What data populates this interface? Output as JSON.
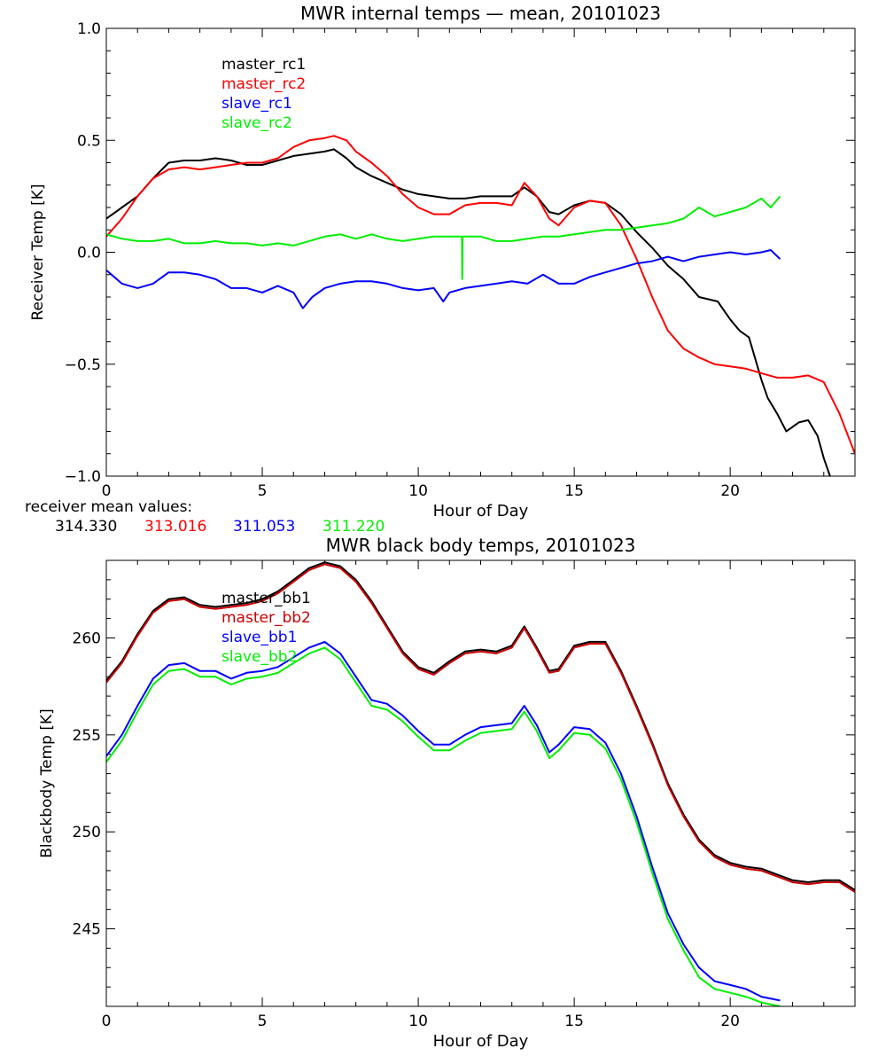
{
  "chart_data": [
    {
      "type": "line",
      "title": "MWR internal temps — mean, 20101023",
      "xlabel": "Hour of Day",
      "ylabel": "Receiver Temp [K]",
      "xlim": [
        0,
        24
      ],
      "ylim": [
        -1.0,
        1.0
      ],
      "x_ticks": [
        0,
        5,
        10,
        15,
        20
      ],
      "y_ticks": [
        -1.0,
        -0.5,
        0.0,
        0.5,
        1.0
      ],
      "y_tick_labels": [
        "−1.0",
        "−0.5",
        "0.0",
        "0.5",
        "1.0"
      ],
      "legend_position": "top-left",
      "series": [
        {
          "name": "master_rc1",
          "color": "#000000",
          "x": [
            0,
            0.5,
            1,
            1.5,
            2,
            2.5,
            3,
            3.5,
            4,
            4.5,
            5,
            5.5,
            6,
            6.5,
            7,
            7.3,
            7.7,
            8,
            8.5,
            9,
            9.5,
            10,
            10.5,
            11,
            11.5,
            12,
            12.5,
            13,
            13.4,
            13.8,
            14.2,
            14.5,
            15,
            15.5,
            16,
            16.5,
            17,
            17.5,
            18,
            18.5,
            19,
            19.3,
            19.6,
            20,
            20.3,
            20.6,
            21,
            21.2,
            21.5,
            21.8,
            22,
            22.2,
            22.5,
            22.8,
            23,
            23.2
          ],
          "y": [
            0.15,
            0.2,
            0.25,
            0.33,
            0.4,
            0.41,
            0.41,
            0.42,
            0.41,
            0.39,
            0.39,
            0.41,
            0.43,
            0.44,
            0.45,
            0.46,
            0.42,
            0.38,
            0.34,
            0.31,
            0.28,
            0.26,
            0.25,
            0.24,
            0.24,
            0.25,
            0.25,
            0.25,
            0.29,
            0.25,
            0.18,
            0.17,
            0.21,
            0.23,
            0.22,
            0.17,
            0.09,
            0.02,
            -0.06,
            -0.12,
            -0.2,
            -0.21,
            -0.22,
            -0.3,
            -0.35,
            -0.38,
            -0.57,
            -0.65,
            -0.72,
            -0.8,
            -0.78,
            -0.76,
            -0.75,
            -0.82,
            -0.92,
            -1.0
          ]
        },
        {
          "name": "master_rc2",
          "color": "#ff0000",
          "x": [
            0,
            0.5,
            1,
            1.5,
            2,
            2.5,
            3,
            3.5,
            4,
            4.5,
            5,
            5.5,
            6,
            6.5,
            7,
            7.3,
            7.7,
            8,
            8.5,
            9,
            9.5,
            10,
            10.5,
            11,
            11.5,
            12,
            12.5,
            13,
            13.4,
            13.8,
            14.2,
            14.5,
            15,
            15.5,
            16,
            16.5,
            17,
            17.5,
            18,
            18.5,
            19,
            19.5,
            20,
            20.5,
            21,
            21.5,
            22,
            22.5,
            23,
            23.5,
            24
          ],
          "y": [
            0.07,
            0.15,
            0.25,
            0.33,
            0.37,
            0.38,
            0.37,
            0.38,
            0.39,
            0.4,
            0.4,
            0.42,
            0.47,
            0.5,
            0.51,
            0.52,
            0.5,
            0.45,
            0.4,
            0.34,
            0.26,
            0.2,
            0.17,
            0.17,
            0.21,
            0.22,
            0.22,
            0.21,
            0.31,
            0.25,
            0.15,
            0.12,
            0.2,
            0.23,
            0.22,
            0.12,
            -0.03,
            -0.2,
            -0.35,
            -0.43,
            -0.47,
            -0.5,
            -0.51,
            -0.52,
            -0.54,
            -0.56,
            -0.56,
            -0.55,
            -0.58,
            -0.72,
            -0.9
          ]
        },
        {
          "name": "slave_rc1",
          "color": "#0000ff",
          "x": [
            0,
            0.5,
            1,
            1.5,
            2,
            2.5,
            3,
            3.5,
            4,
            4.5,
            5,
            5.5,
            6,
            6.3,
            6.6,
            7,
            7.5,
            8,
            8.5,
            9,
            9.5,
            10,
            10.5,
            10.8,
            11,
            11.5,
            12,
            12.5,
            13,
            13.5,
            14,
            14.5,
            15,
            15.5,
            16,
            16.5,
            17,
            17.5,
            18,
            18.5,
            19,
            19.5,
            20,
            20.5,
            21,
            21.3,
            21.6
          ],
          "y": [
            -0.08,
            -0.14,
            -0.16,
            -0.14,
            -0.09,
            -0.09,
            -0.1,
            -0.12,
            -0.16,
            -0.16,
            -0.18,
            -0.15,
            -0.18,
            -0.25,
            -0.2,
            -0.16,
            -0.14,
            -0.13,
            -0.13,
            -0.14,
            -0.16,
            -0.17,
            -0.16,
            -0.22,
            -0.18,
            -0.16,
            -0.15,
            -0.14,
            -0.13,
            -0.14,
            -0.1,
            -0.14,
            -0.14,
            -0.11,
            -0.09,
            -0.07,
            -0.05,
            -0.04,
            -0.02,
            -0.04,
            -0.02,
            -0.01,
            0.0,
            -0.01,
            0.0,
            0.01,
            -0.03
          ]
        },
        {
          "name": "slave_rc2",
          "color": "#00ee00",
          "x": [
            0,
            0.5,
            1,
            1.5,
            2,
            2.5,
            3,
            3.5,
            4,
            4.5,
            5,
            5.5,
            6,
            6.5,
            7,
            7.5,
            8,
            8.5,
            9,
            9.5,
            10,
            10.5,
            11,
            11.4,
            11.41,
            11.42,
            12,
            12.5,
            13,
            13.5,
            14,
            14.5,
            15,
            15.5,
            16,
            16.5,
            17,
            17.5,
            18,
            18.5,
            19,
            19.5,
            20,
            20.5,
            21,
            21.3,
            21.6
          ],
          "y": [
            0.08,
            0.06,
            0.05,
            0.05,
            0.06,
            0.04,
            0.04,
            0.05,
            0.04,
            0.04,
            0.03,
            0.04,
            0.03,
            0.05,
            0.07,
            0.08,
            0.06,
            0.08,
            0.06,
            0.05,
            0.06,
            0.07,
            0.07,
            0.07,
            -0.12,
            0.07,
            0.07,
            0.05,
            0.05,
            0.06,
            0.07,
            0.07,
            0.08,
            0.09,
            0.1,
            0.1,
            0.11,
            0.12,
            0.13,
            0.15,
            0.2,
            0.16,
            0.18,
            0.2,
            0.24,
            0.2,
            0.25
          ]
        }
      ],
      "annotation_label": "receiver mean values:",
      "mean_values": [
        {
          "label": "314.330",
          "color": "#000000"
        },
        {
          "label": "313.016",
          "color": "#ff0000"
        },
        {
          "label": "311.053",
          "color": "#0000ff"
        },
        {
          "label": "311.220",
          "color": "#00ee00"
        }
      ]
    },
    {
      "type": "line",
      "title": "MWR black body temps, 20101023",
      "xlabel": "Hour of Day",
      "ylabel": "Blackbody Temp [K]",
      "xlim": [
        0,
        24
      ],
      "ylim": [
        241,
        264
      ],
      "x_ticks": [
        0,
        5,
        10,
        15,
        20
      ],
      "y_ticks": [
        245,
        250,
        255,
        260
      ],
      "y_tick_labels": [
        "245",
        "250",
        "255",
        "260"
      ],
      "legend_position": "top-left",
      "series": [
        {
          "name": "master_bb1",
          "color": "#000000",
          "x": [
            0,
            0.5,
            1,
            1.5,
            2,
            2.5,
            3,
            3.5,
            4,
            4.5,
            5,
            5.5,
            6,
            6.5,
            7,
            7.5,
            8,
            8.5,
            9,
            9.5,
            10,
            10.5,
            11,
            11.5,
            12,
            12.5,
            13,
            13.4,
            13.8,
            14.2,
            14.5,
            15,
            15.5,
            16,
            16.5,
            17,
            17.5,
            18,
            18.5,
            19,
            19.5,
            20,
            20.5,
            21,
            21.5,
            22,
            22.5,
            23,
            23.5,
            24
          ],
          "y": [
            257.8,
            258.8,
            260.2,
            261.4,
            262.0,
            262.1,
            261.7,
            261.6,
            261.7,
            261.8,
            262.0,
            262.4,
            263.0,
            263.6,
            263.9,
            263.7,
            263.0,
            261.9,
            260.6,
            259.3,
            258.5,
            258.2,
            258.8,
            259.3,
            259.4,
            259.3,
            259.6,
            260.6,
            259.5,
            258.3,
            258.4,
            259.6,
            259.8,
            259.8,
            258.3,
            256.5,
            254.6,
            252.5,
            250.9,
            249.6,
            248.8,
            248.4,
            248.2,
            248.1,
            247.8,
            247.5,
            247.4,
            247.5,
            247.5,
            247.0
          ]
        },
        {
          "name": "master_bb2",
          "color": "#cc0000",
          "x": [
            0,
            0.5,
            1,
            1.5,
            2,
            2.5,
            3,
            3.5,
            4,
            4.5,
            5,
            5.5,
            6,
            6.5,
            7,
            7.5,
            8,
            8.5,
            9,
            9.5,
            10,
            10.5,
            11,
            11.5,
            12,
            12.5,
            13,
            13.4,
            13.8,
            14.2,
            14.5,
            15,
            15.5,
            16,
            16.5,
            17,
            17.5,
            18,
            18.5,
            19,
            19.5,
            20,
            20.5,
            21,
            21.5,
            22,
            22.5,
            23,
            23.5,
            24
          ],
          "y": [
            257.7,
            258.7,
            260.1,
            261.3,
            261.9,
            262.0,
            261.6,
            261.5,
            261.6,
            261.7,
            261.9,
            262.3,
            262.9,
            263.5,
            263.8,
            263.6,
            262.9,
            261.8,
            260.5,
            259.2,
            258.4,
            258.1,
            258.7,
            259.2,
            259.3,
            259.2,
            259.5,
            260.5,
            259.4,
            258.2,
            258.3,
            259.5,
            259.7,
            259.7,
            258.2,
            256.4,
            254.5,
            252.4,
            250.8,
            249.5,
            248.7,
            248.3,
            248.1,
            248.0,
            247.7,
            247.4,
            247.3,
            247.4,
            247.4,
            246.9
          ]
        },
        {
          "name": "slave_bb1",
          "color": "#0000ff",
          "x": [
            0,
            0.5,
            1,
            1.5,
            2,
            2.5,
            3,
            3.5,
            4,
            4.5,
            5,
            5.5,
            6,
            6.5,
            7,
            7.5,
            8,
            8.5,
            9,
            9.5,
            10,
            10.5,
            11,
            11.5,
            12,
            12.5,
            13,
            13.4,
            13.8,
            14.2,
            14.5,
            15,
            15.5,
            16,
            16.5,
            17,
            17.5,
            18,
            18.5,
            19,
            19.5,
            20,
            20.5,
            21,
            21.6
          ],
          "y": [
            253.9,
            255.0,
            256.5,
            257.9,
            258.6,
            258.7,
            258.3,
            258.3,
            257.9,
            258.2,
            258.3,
            258.5,
            259.0,
            259.5,
            259.8,
            259.2,
            258.0,
            256.8,
            256.6,
            256.0,
            255.2,
            254.5,
            254.5,
            255.0,
            255.4,
            255.5,
            255.6,
            256.5,
            255.5,
            254.1,
            254.5,
            255.4,
            255.3,
            254.6,
            253.0,
            250.8,
            248.2,
            245.8,
            244.2,
            243.0,
            242.3,
            242.1,
            241.9,
            241.5,
            241.3
          ]
        },
        {
          "name": "slave_bb2",
          "color": "#00ee00",
          "x": [
            0,
            0.5,
            1,
            1.5,
            2,
            2.5,
            3,
            3.5,
            4,
            4.5,
            5,
            5.5,
            6,
            6.5,
            7,
            7.5,
            8,
            8.5,
            9,
            9.5,
            10,
            10.5,
            11,
            11.5,
            12,
            12.5,
            13,
            13.4,
            13.8,
            14.2,
            14.5,
            15,
            15.5,
            16,
            16.5,
            17,
            17.5,
            18,
            18.5,
            19,
            19.5,
            20,
            20.5,
            21,
            21.6
          ],
          "y": [
            253.6,
            254.7,
            256.2,
            257.6,
            258.3,
            258.4,
            258.0,
            258.0,
            257.6,
            257.9,
            258.0,
            258.2,
            258.7,
            259.2,
            259.5,
            258.9,
            257.7,
            256.5,
            256.3,
            255.7,
            254.9,
            254.2,
            254.2,
            254.7,
            255.1,
            255.2,
            255.3,
            256.2,
            255.2,
            253.8,
            254.2,
            255.1,
            255.0,
            254.3,
            252.7,
            250.5,
            247.9,
            245.5,
            243.9,
            242.5,
            241.9,
            241.7,
            241.5,
            241.2,
            241.0
          ]
        }
      ]
    }
  ]
}
